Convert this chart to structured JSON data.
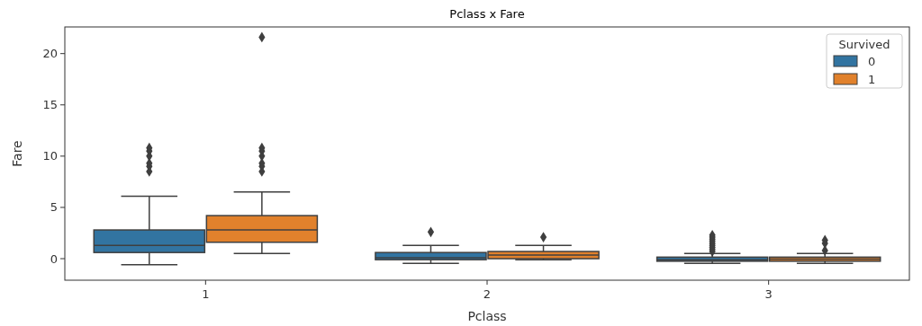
{
  "chart_data": {
    "type": "box",
    "title": "Pclass x Fare",
    "xlabel": "Pclass",
    "ylabel": "Fare",
    "legend_title": "Survived",
    "categories": [
      "1",
      "2",
      "3"
    ],
    "ylim": [
      -2.1,
      22.6
    ],
    "yticks": [
      0,
      5,
      10,
      15,
      20
    ],
    "grid": false,
    "legend": "top right",
    "marker": "diamond",
    "series": [
      {
        "name": "0",
        "color": "#3274a1",
        "boxes": [
          {
            "low": -0.6,
            "q1": 0.6,
            "median": 1.3,
            "q3": 2.8,
            "high": 6.1,
            "outliers": [
              8.5,
              9,
              9.3,
              10,
              10.5,
              10.8
            ]
          },
          {
            "low": -0.45,
            "q1": -0.1,
            "median": 0.1,
            "q3": 0.6,
            "high": 1.3,
            "outliers": [
              2.6
            ]
          },
          {
            "low": -0.45,
            "q1": -0.25,
            "median": -0.1,
            "q3": 0.15,
            "high": 0.5,
            "outliers": [
              0.7,
              0.9,
              1.1,
              1.3,
              1.5,
              1.7,
              1.9,
              2.1,
              2.3
            ]
          }
        ]
      },
      {
        "name": "1",
        "color": "#e1812c",
        "boxes": [
          {
            "low": 0.5,
            "q1": 1.6,
            "median": 2.8,
            "q3": 4.2,
            "high": 6.5,
            "outliers": [
              8.5,
              9,
              9.3,
              10,
              10.5,
              10.8,
              21.6
            ]
          },
          {
            "low": -0.1,
            "q1": 0,
            "median": 0.35,
            "q3": 0.7,
            "high": 1.3,
            "outliers": [
              2.1
            ]
          },
          {
            "low": -0.45,
            "q1": -0.25,
            "median": -0.05,
            "q3": 0.15,
            "high": 0.5,
            "outliers": [
              0.8,
              1.5,
              1.8
            ]
          }
        ]
      }
    ]
  }
}
